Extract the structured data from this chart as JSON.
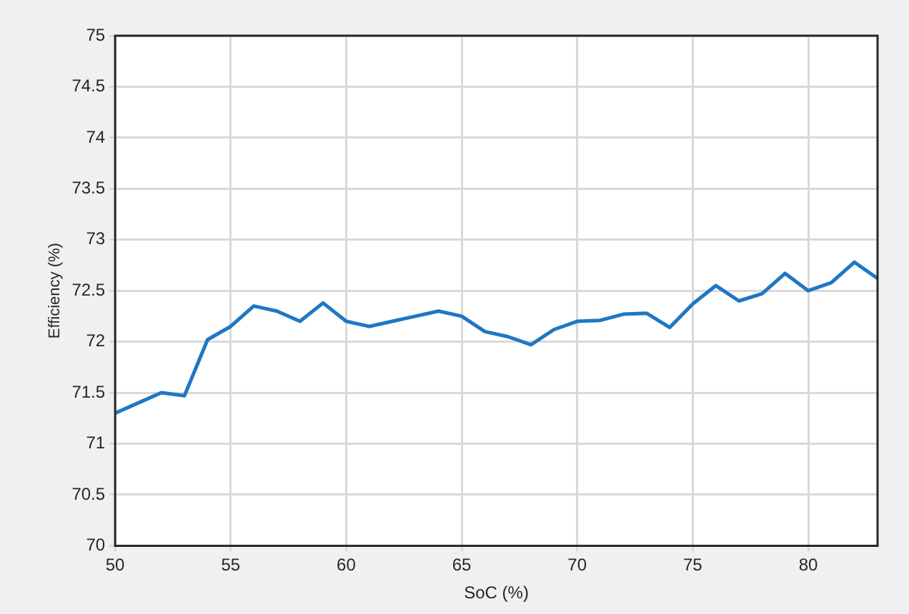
{
  "chart_data": {
    "type": "line",
    "xlabel": "SoC (%)",
    "ylabel": "Efficiency (%)",
    "x": [
      50,
      51,
      52,
      53,
      54,
      55,
      56,
      57,
      58,
      59,
      60,
      61,
      62,
      63,
      64,
      65,
      66,
      67,
      68,
      69,
      70,
      71,
      72,
      73,
      74,
      75,
      76,
      77,
      78,
      79,
      80,
      81,
      82,
      83
    ],
    "series": [
      {
        "color": "#1f77c4",
        "values": [
          71.3,
          71.4,
          71.5,
          71.47,
          72.02,
          72.15,
          72.35,
          72.3,
          72.2,
          72.38,
          72.2,
          72.15,
          72.2,
          72.25,
          72.3,
          72.25,
          72.1,
          72.05,
          71.97,
          72.12,
          72.2,
          72.21,
          72.27,
          72.28,
          72.14,
          72.37,
          72.55,
          72.4,
          72.47,
          72.67,
          72.5,
          72.58,
          72.78,
          72.62
        ]
      }
    ],
    "xlim": [
      50,
      83
    ],
    "xticks": [
      50,
      55,
      60,
      65,
      70,
      75,
      80
    ],
    "ylim": [
      70,
      75
    ],
    "yticks": [
      70,
      70.5,
      71,
      71.5,
      72,
      72.5,
      73,
      73.5,
      74,
      74.5,
      75
    ],
    "grid": true,
    "marker": "none",
    "line_style": "solid",
    "legend": false
  }
}
